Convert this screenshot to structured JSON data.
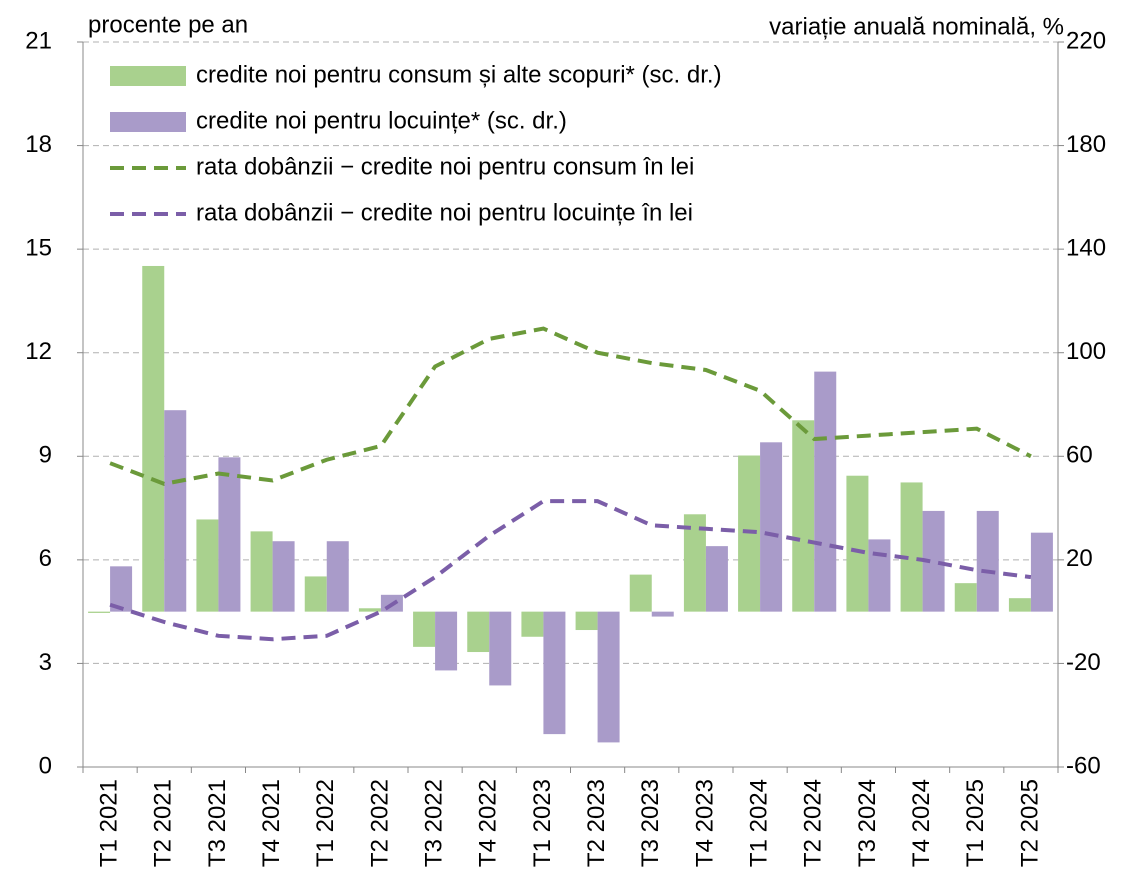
{
  "chart_data": {
    "type": "bar",
    "y_label": "procente pe an",
    "y2_label": "variație anuală nominală, %",
    "categories": [
      "T1 2021",
      "T2 2021",
      "T3 2021",
      "T4 2021",
      "T1 2022",
      "T2 2022",
      "T3 2022",
      "T4 2022",
      "T1 2023",
      "T2 2023",
      "T3 2023",
      "T4 2023",
      "T1 2024",
      "T2 2024",
      "T3 2024",
      "T4 2024",
      "T1 2025",
      "T2 2025"
    ],
    "series": [
      {
        "name": "credite noi pentru consum și alte scopuri* (sc. dr.)",
        "type": "bar",
        "axis": "y2",
        "color": "#a9d18e",
        "values": [
          -0.5,
          133.5,
          35.6,
          31,
          13.6,
          1.3,
          -13.6,
          -15.6,
          -9.7,
          -7.1,
          14.3,
          37.6,
          60.3,
          73.9,
          52.5,
          49.9,
          11,
          5.2
        ]
      },
      {
        "name": "credite noi pentru locuințe* (sc. dr.)",
        "type": "bar",
        "axis": "y2",
        "color": "#a99bc9",
        "values": [
          17.5,
          77.8,
          59.6,
          27.2,
          27.2,
          6.5,
          -22.7,
          -28.5,
          -47.3,
          -50.5,
          -1.9,
          25.3,
          65.4,
          92.7,
          27.9,
          38.9,
          38.9,
          30.5
        ]
      },
      {
        "name": "rata dobânzii − credite noi pentru consum în lei",
        "type": "line",
        "axis": "y",
        "color": "#6b9a3a",
        "values": [
          8.8,
          8.2,
          8.5,
          8.3,
          8.9,
          9.3,
          11.6,
          12.4,
          12.7,
          12.0,
          11.7,
          11.5,
          10.9,
          9.5,
          9.6,
          9.7,
          9.8,
          9.0
        ]
      },
      {
        "name": "rata dobânzii − credite noi pentru locuințe în lei",
        "type": "line",
        "axis": "y",
        "color": "#7b5ea8",
        "values": [
          4.7,
          4.2,
          3.8,
          3.7,
          3.8,
          4.5,
          5.5,
          6.7,
          7.7,
          7.7,
          7.0,
          6.9,
          6.8,
          6.5,
          6.2,
          6.0,
          5.7,
          5.5
        ]
      }
    ],
    "ylim": [
      0,
      21
    ],
    "yticks": [
      0,
      3,
      6,
      9,
      12,
      15,
      18,
      21
    ],
    "y2lim": [
      -60,
      220
    ],
    "y2ticks": [
      -60,
      -20,
      20,
      60,
      100,
      140,
      180,
      220
    ],
    "grid": true,
    "legend": "top-left"
  }
}
